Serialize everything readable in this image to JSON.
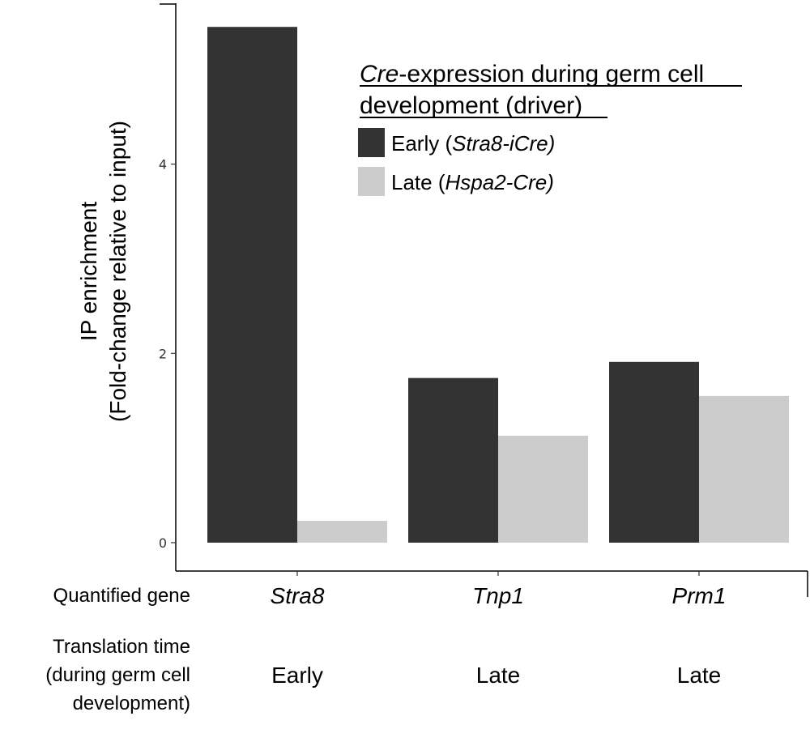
{
  "chart_data": {
    "type": "bar",
    "title": "",
    "xlabel": "",
    "ylabel_lines": [
      "IP enrichment",
      "(Fold-change relative to input)"
    ],
    "ylim": [
      -0.3,
      5.7
    ],
    "yticks": [
      0,
      2,
      4
    ],
    "ytick_labels": [
      "0",
      "2",
      "4"
    ],
    "categories": [
      "Stra8",
      "Tnp1",
      "Prm1"
    ],
    "series": [
      {
        "name": "Early",
        "driver": "Stra8-iCre",
        "color": "#333333",
        "values": [
          5.45,
          1.74,
          1.91
        ]
      },
      {
        "name": "Late",
        "driver": "Hspa2-Cre",
        "color": "#cccccc",
        "values": [
          0.23,
          1.13,
          1.55
        ]
      }
    ],
    "legend": {
      "title_italic": "Cre",
      "title_rest": "-expression during germ cell",
      "title_line2": "development (driver)",
      "position": "top-right"
    },
    "row_labels": {
      "gene": "Quantified gene",
      "time_lines": [
        "Translation time",
        "(during germ cell",
        "development)"
      ]
    },
    "translation_time": [
      "Early",
      "Late",
      "Late"
    ],
    "grid": false
  }
}
